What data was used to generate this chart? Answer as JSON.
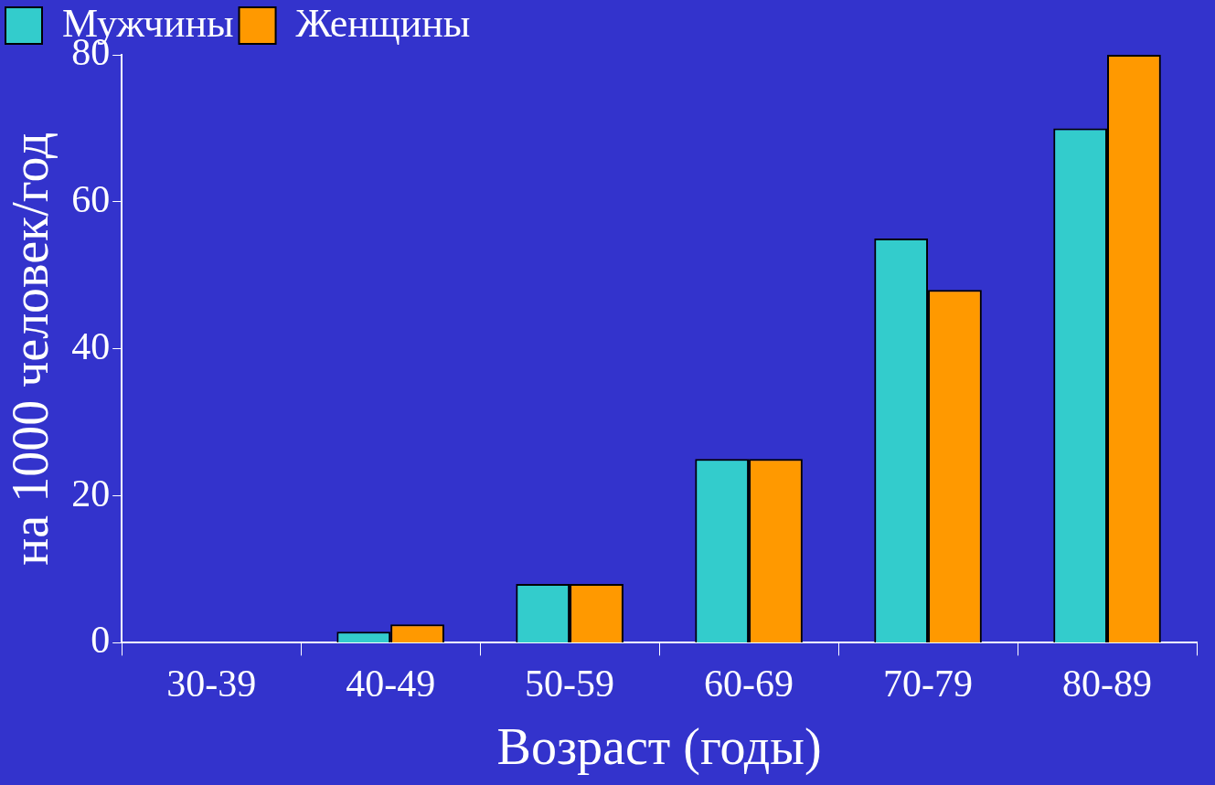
{
  "chart_data": {
    "type": "bar",
    "xlabel": "Возраст (годы)",
    "ylabel": "на 1000 человек/год",
    "categories": [
      "30-39",
      "40-49",
      "50-59",
      "60-69",
      "70-79",
      "80-89"
    ],
    "series": [
      {
        "name": "Мужчины",
        "color": "#33cccc",
        "values": [
          0,
          1.5,
          8,
          25,
          55,
          70
        ]
      },
      {
        "name": "Женщины",
        "color": "#ff9900",
        "values": [
          0,
          2.5,
          8,
          25,
          48,
          80
        ]
      }
    ],
    "ylim": [
      0,
      80
    ],
    "yticks": [
      0,
      20,
      40,
      60,
      80
    ],
    "grid": false,
    "legend": "top left"
  }
}
